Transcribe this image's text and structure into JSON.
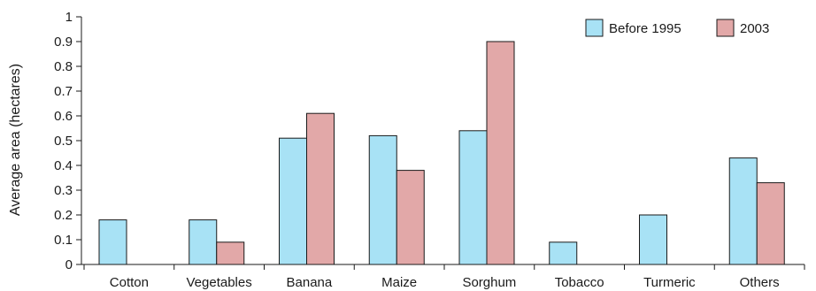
{
  "chart_data": {
    "type": "bar",
    "title": "",
    "xlabel": "",
    "ylabel": "Average area (hectares)",
    "ylim": [
      0,
      1
    ],
    "yticks": [
      "0",
      "0.1",
      "0.2",
      "0.3",
      "0.4",
      "0.5",
      "0.6",
      "0.7",
      "0.8",
      "0.9",
      "1"
    ],
    "categories": [
      "Cotton",
      "Vegetables",
      "Banana",
      "Maize",
      "Sorghum",
      "Tobacco",
      "Turmeric",
      "Others"
    ],
    "series": [
      {
        "name": "Before 1995",
        "color": "#a8e2f5",
        "values": [
          0.18,
          0.18,
          0.51,
          0.52,
          0.54,
          0.09,
          0.2,
          0.43
        ]
      },
      {
        "name": "2003",
        "color": "#e2a8a8",
        "values": [
          null,
          0.09,
          0.61,
          0.38,
          0.9,
          null,
          null,
          0.33
        ]
      }
    ],
    "grid": false,
    "legend": "top-right"
  }
}
